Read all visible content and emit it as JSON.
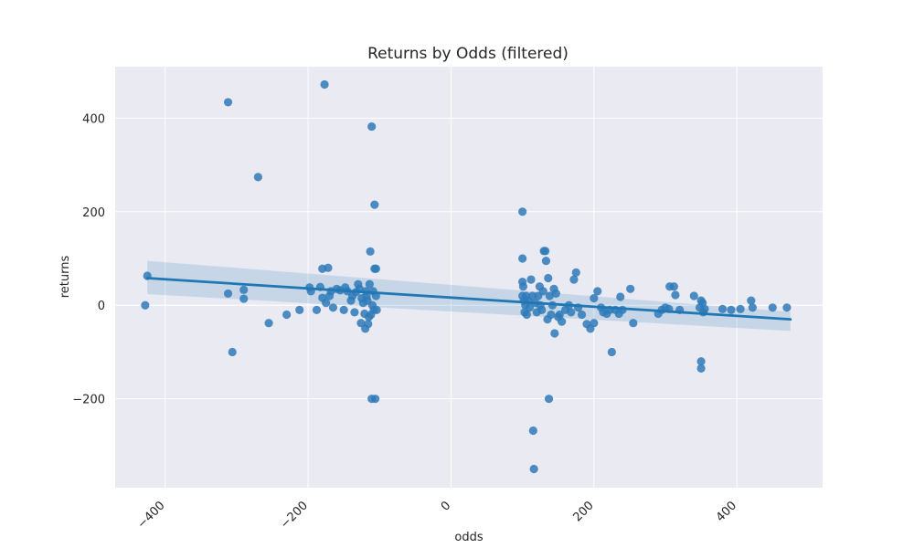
{
  "chart_data": {
    "type": "scatter",
    "title": "Returns by Odds (filtered)",
    "xlabel": "odds",
    "ylabel": "returns",
    "xlim": [
      -470,
      520
    ],
    "ylim": [
      -390,
      510
    ],
    "xticks": [
      -400,
      -200,
      0,
      200,
      400
    ],
    "xtick_labels": [
      "−400",
      "−200",
      "0",
      "200",
      "400"
    ],
    "yticks": [
      -200,
      0,
      200,
      400
    ],
    "ytick_labels": [
      "−200",
      "0",
      "200",
      "400"
    ],
    "grid": true,
    "style": "seaborn-darkgrid",
    "colors": {
      "points": "#2f7ab8",
      "line": "#1f77b4",
      "band": "#1f77b4",
      "background": "#eaeaf2",
      "grid": "#ffffff"
    },
    "regression": {
      "x": [
        -425,
        475
      ],
      "y": [
        58,
        -30
      ],
      "ci_upper": [
        95,
        -14
      ],
      "ci_lower": [
        24,
        -55
      ]
    },
    "points": [
      {
        "x": -425,
        "y": 63
      },
      {
        "x": -428,
        "y": 0
      },
      {
        "x": -312,
        "y": 434
      },
      {
        "x": -312,
        "y": 25
      },
      {
        "x": -306,
        "y": -100
      },
      {
        "x": -290,
        "y": 33
      },
      {
        "x": -290,
        "y": 14
      },
      {
        "x": -270,
        "y": 274
      },
      {
        "x": -255,
        "y": -38
      },
      {
        "x": -230,
        "y": -20
      },
      {
        "x": -212,
        "y": -10
      },
      {
        "x": -198,
        "y": 38
      },
      {
        "x": -196,
        "y": 30
      },
      {
        "x": -188,
        "y": -10
      },
      {
        "x": -183,
        "y": 39
      },
      {
        "x": -180,
        "y": 78
      },
      {
        "x": -180,
        "y": 16
      },
      {
        "x": -177,
        "y": 472
      },
      {
        "x": -175,
        "y": 5
      },
      {
        "x": -172,
        "y": 80
      },
      {
        "x": -170,
        "y": 20
      },
      {
        "x": -168,
        "y": 30
      },
      {
        "x": -165,
        "y": -5
      },
      {
        "x": -160,
        "y": 35
      },
      {
        "x": -155,
        "y": 32
      },
      {
        "x": -150,
        "y": -10
      },
      {
        "x": -148,
        "y": 38
      },
      {
        "x": -145,
        "y": 30
      },
      {
        "x": -140,
        "y": 10
      },
      {
        "x": -138,
        "y": 20
      },
      {
        "x": -135,
        "y": -15
      },
      {
        "x": -133,
        "y": 28
      },
      {
        "x": -130,
        "y": 45
      },
      {
        "x": -128,
        "y": 35
      },
      {
        "x": -126,
        "y": -38
      },
      {
        "x": -125,
        "y": 15
      },
      {
        "x": -123,
        "y": 5
      },
      {
        "x": -121,
        "y": -18
      },
      {
        "x": -120,
        "y": -50
      },
      {
        "x": -119,
        "y": 30
      },
      {
        "x": -118,
        "y": 20
      },
      {
        "x": -117,
        "y": 10
      },
      {
        "x": -116,
        "y": -40
      },
      {
        "x": -115,
        "y": -25
      },
      {
        "x": -114,
        "y": 45
      },
      {
        "x": -113,
        "y": 115
      },
      {
        "x": -112,
        "y": -20
      },
      {
        "x": -111,
        "y": 382
      },
      {
        "x": -111,
        "y": -200
      },
      {
        "x": -110,
        "y": 0
      },
      {
        "x": -109,
        "y": 30
      },
      {
        "x": -108,
        "y": -10
      },
      {
        "x": -107,
        "y": 215
      },
      {
        "x": -107,
        "y": 78
      },
      {
        "x": -106,
        "y": -200
      },
      {
        "x": -105,
        "y": 78
      },
      {
        "x": -105,
        "y": 20
      },
      {
        "x": -104,
        "y": -10
      },
      {
        "x": 100,
        "y": 200
      },
      {
        "x": 100,
        "y": 100
      },
      {
        "x": 100,
        "y": 50
      },
      {
        "x": 100,
        "y": 20
      },
      {
        "x": 101,
        "y": 40
      },
      {
        "x": 102,
        "y": 10
      },
      {
        "x": 103,
        "y": -15
      },
      {
        "x": 104,
        "y": 0
      },
      {
        "x": 105,
        "y": 20
      },
      {
        "x": 106,
        "y": -20
      },
      {
        "x": 108,
        "y": 10
      },
      {
        "x": 110,
        "y": -5
      },
      {
        "x": 112,
        "y": 55
      },
      {
        "x": 114,
        "y": 20
      },
      {
        "x": 115,
        "y": -268
      },
      {
        "x": 116,
        "y": -350
      },
      {
        "x": 118,
        "y": 5
      },
      {
        "x": 120,
        "y": -15
      },
      {
        "x": 122,
        "y": 20
      },
      {
        "x": 124,
        "y": 40
      },
      {
        "x": 125,
        "y": 0
      },
      {
        "x": 127,
        "y": -10
      },
      {
        "x": 129,
        "y": 30
      },
      {
        "x": 130,
        "y": 116
      },
      {
        "x": 132,
        "y": 116
      },
      {
        "x": 133,
        "y": 95
      },
      {
        "x": 135,
        "y": -30
      },
      {
        "x": 136,
        "y": 58
      },
      {
        "x": 137,
        "y": -200
      },
      {
        "x": 138,
        "y": 20
      },
      {
        "x": 140,
        "y": -20
      },
      {
        "x": 142,
        "y": 0
      },
      {
        "x": 144,
        "y": 35
      },
      {
        "x": 145,
        "y": -60
      },
      {
        "x": 147,
        "y": 25
      },
      {
        "x": 150,
        "y": -25
      },
      {
        "x": 152,
        "y": -20
      },
      {
        "x": 155,
        "y": -35
      },
      {
        "x": 160,
        "y": -10
      },
      {
        "x": 165,
        "y": 0
      },
      {
        "x": 168,
        "y": -15
      },
      {
        "x": 172,
        "y": 55
      },
      {
        "x": 175,
        "y": 70
      },
      {
        "x": 178,
        "y": -5
      },
      {
        "x": 183,
        "y": -20
      },
      {
        "x": 190,
        "y": -40
      },
      {
        "x": 195,
        "y": -50
      },
      {
        "x": 200,
        "y": -38
      },
      {
        "x": 200,
        "y": 15
      },
      {
        "x": 205,
        "y": 30
      },
      {
        "x": 210,
        "y": -5
      },
      {
        "x": 213,
        "y": -15
      },
      {
        "x": 218,
        "y": -18
      },
      {
        "x": 222,
        "y": -10
      },
      {
        "x": 225,
        "y": -100
      },
      {
        "x": 230,
        "y": -10
      },
      {
        "x": 235,
        "y": -18
      },
      {
        "x": 237,
        "y": 18
      },
      {
        "x": 240,
        "y": -10
      },
      {
        "x": 251,
        "y": 35
      },
      {
        "x": 255,
        "y": -38
      },
      {
        "x": 290,
        "y": -18
      },
      {
        "x": 295,
        "y": -10
      },
      {
        "x": 300,
        "y": -5
      },
      {
        "x": 305,
        "y": -8
      },
      {
        "x": 306,
        "y": 40
      },
      {
        "x": 312,
        "y": 40
      },
      {
        "x": 314,
        "y": 22
      },
      {
        "x": 320,
        "y": -10
      },
      {
        "x": 340,
        "y": 20
      },
      {
        "x": 348,
        "y": -5
      },
      {
        "x": 350,
        "y": 10
      },
      {
        "x": 350,
        "y": -120
      },
      {
        "x": 350,
        "y": -135
      },
      {
        "x": 352,
        "y": 5
      },
      {
        "x": 353,
        "y": -15
      },
      {
        "x": 355,
        "y": -8
      },
      {
        "x": 380,
        "y": -8
      },
      {
        "x": 392,
        "y": -10
      },
      {
        "x": 405,
        "y": -8
      },
      {
        "x": 420,
        "y": 10
      },
      {
        "x": 422,
        "y": -5
      },
      {
        "x": 450,
        "y": -5
      },
      {
        "x": 470,
        "y": -5
      }
    ]
  }
}
